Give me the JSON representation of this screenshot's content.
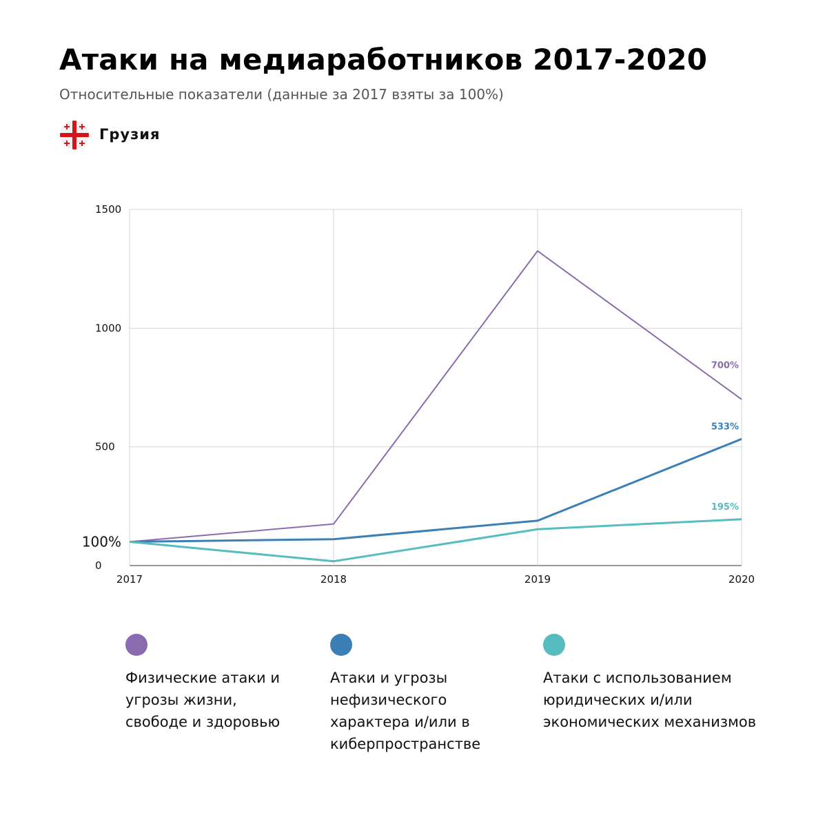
{
  "header": {
    "title": "Атаки на медиаработников 2017-2020",
    "subtitle": "Относительные показатели (данные за 2017 взяты за 100%)",
    "country": "Грузия",
    "flag_icon": "georgia-flag-icon"
  },
  "chart_data": {
    "type": "line",
    "x": [
      "2017",
      "2018",
      "2019",
      "2020"
    ],
    "ylim": [
      0,
      1500
    ],
    "yticks": [
      "0",
      "500",
      "1000",
      "1500"
    ],
    "grid": true,
    "baseline_label": "100%",
    "series": [
      {
        "name": "Физические атаки и угрозы жизни, свободе и здоровью",
        "color": "#8b6bb0",
        "values": [
          100,
          175,
          1325,
          700
        ],
        "end_label": "700%"
      },
      {
        "name": "Атаки и угрозы нефизического характера и/или в киберпространстве",
        "color": "#3a7fb5",
        "values": [
          100,
          111,
          189,
          533
        ],
        "end_label": "533%"
      },
      {
        "name": "Атаки с использованием юридических и/или экономических механизмов",
        "color": "#55bdbf",
        "values": [
          100,
          18,
          153,
          195
        ],
        "end_label": "195%"
      }
    ]
  },
  "legend": [
    {
      "color": "#8b6bb0",
      "label": "Физические атаки и угрозы жизни, свободе и здоровью"
    },
    {
      "color": "#3a7fb5",
      "label": "Атаки и угрозы нефизического характера и/или в киберпространстве"
    },
    {
      "color": "#55bdbf",
      "label": "Атаки с использованием юридических и/или экономических механизмов"
    }
  ]
}
